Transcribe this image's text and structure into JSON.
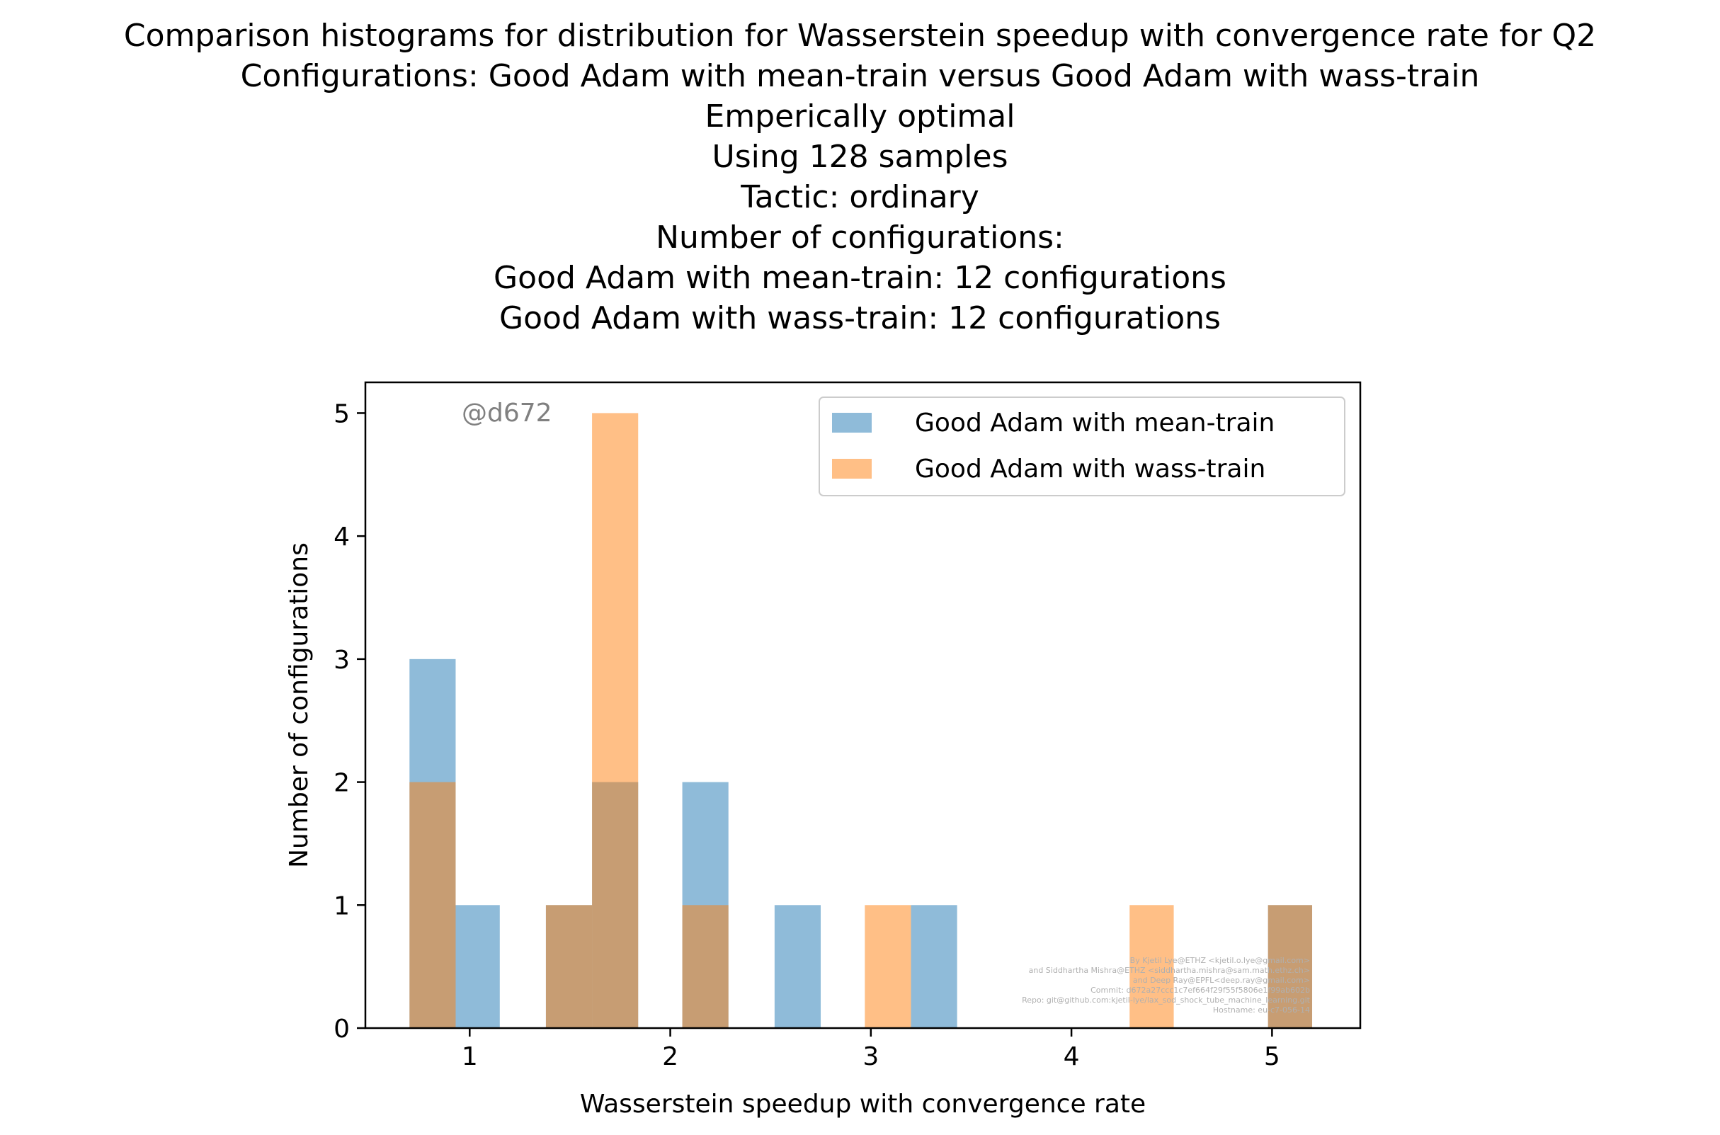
{
  "chart_data": {
    "type": "histogram",
    "title_lines": [
      "Comparison histograms for distribution for Wasserstein speedup with convergence rate for Q2",
      "Configurations: Good Adam with mean-train versus Good Adam with wass-train",
      "Emperically optimal",
      "Using 128 samples",
      "Tactic: ordinary",
      "Number of configurations:",
      "Good Adam with mean-train: 12 configurations",
      "Good Adam with wass-train: 12 configurations"
    ],
    "xlabel": "Wasserstein speedup with convergence rate",
    "ylabel": "Number of configurations",
    "xlim": [
      0.48,
      5.44
    ],
    "ylim": [
      0,
      5.25
    ],
    "xticks": [
      1,
      2,
      3,
      4,
      5
    ],
    "yticks": [
      0,
      1,
      2,
      3,
      4,
      5
    ],
    "grid": false,
    "legend_position": "top-right",
    "annotation": "@d672",
    "series": [
      {
        "name": "Good Adam with mean-train",
        "color": "#1f77b4",
        "bins": [
          {
            "x0": 0.7,
            "x1": 0.93,
            "count": 3
          },
          {
            "x0": 0.93,
            "x1": 1.15,
            "count": 1
          },
          {
            "x0": 1.38,
            "x1": 1.61,
            "count": 1
          },
          {
            "x0": 1.61,
            "x1": 1.84,
            "count": 2
          },
          {
            "x0": 2.06,
            "x1": 2.29,
            "count": 2
          },
          {
            "x0": 2.52,
            "x1": 2.75,
            "count": 1
          },
          {
            "x0": 3.2,
            "x1": 3.43,
            "count": 1
          },
          {
            "x0": 4.98,
            "x1": 5.2,
            "count": 1
          }
        ]
      },
      {
        "name": "Good Adam with wass-train",
        "color": "#ff7f0e",
        "bins": [
          {
            "x0": 0.7,
            "x1": 0.93,
            "count": 2
          },
          {
            "x0": 1.38,
            "x1": 1.61,
            "count": 1
          },
          {
            "x0": 1.61,
            "x1": 1.84,
            "count": 5
          },
          {
            "x0": 2.06,
            "x1": 2.29,
            "count": 1
          },
          {
            "x0": 2.97,
            "x1": 3.2,
            "count": 1
          },
          {
            "x0": 4.29,
            "x1": 4.51,
            "count": 1
          },
          {
            "x0": 4.98,
            "x1": 5.2,
            "count": 1
          }
        ]
      }
    ],
    "credits": [
      "By Kjetil Lye@ETHZ <kjetil.o.lye@gmail.com>",
      "and Siddhartha Mishra@ETHZ <siddhartha.mishra@sam.math.ethz.ch>",
      "and Deep Ray@EPFL<deep.ray@gmail.com>",
      "Commit: d672a27ccc1c7ef664f29f55f5806e1f99ab602b",
      "Repo: git@github.com:kjetil-lye/lax_sod_shock_tube_machine_learning.git",
      "Hostname: eu-c7-056-14"
    ]
  }
}
